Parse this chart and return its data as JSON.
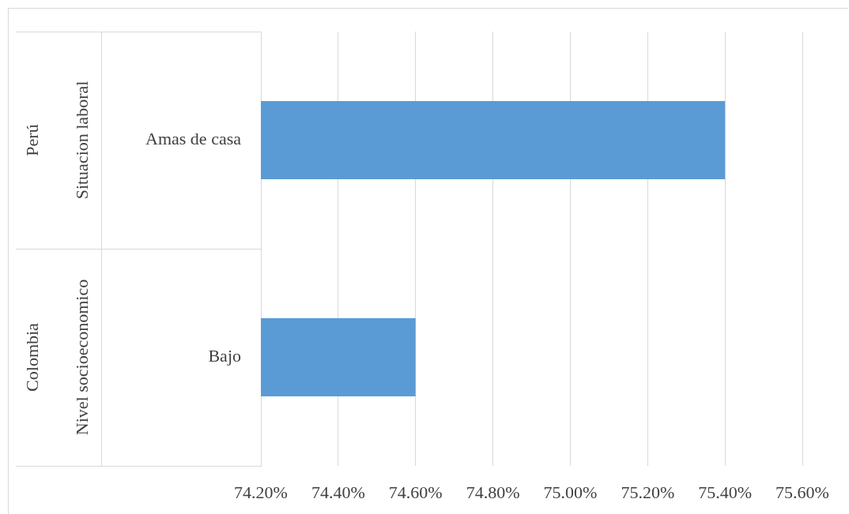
{
  "chart_data": {
    "type": "bar",
    "orientation": "horizontal",
    "categories": [
      "Amas de casa",
      "Bajo"
    ],
    "values": [
      75.4,
      74.6
    ],
    "color": "#5b9bd5",
    "xlim": [
      74.2,
      75.6
    ],
    "xticks": [
      {
        "value": 74.2,
        "label": "74.20%"
      },
      {
        "value": 74.4,
        "label": "74.40%"
      },
      {
        "value": 74.6,
        "label": "74.60%"
      },
      {
        "value": 74.8,
        "label": "74.80%"
      },
      {
        "value": 75.0,
        "label": "75.00%"
      },
      {
        "value": 75.2,
        "label": "75.20%"
      },
      {
        "value": 75.4,
        "label": "75.40%"
      },
      {
        "value": 75.6,
        "label": "75.60%"
      }
    ],
    "annotations": [
      "Perú",
      "Situacion laboral",
      "Colombia",
      "Nivel socioeconomico"
    ],
    "grid": "x",
    "legend": false
  }
}
